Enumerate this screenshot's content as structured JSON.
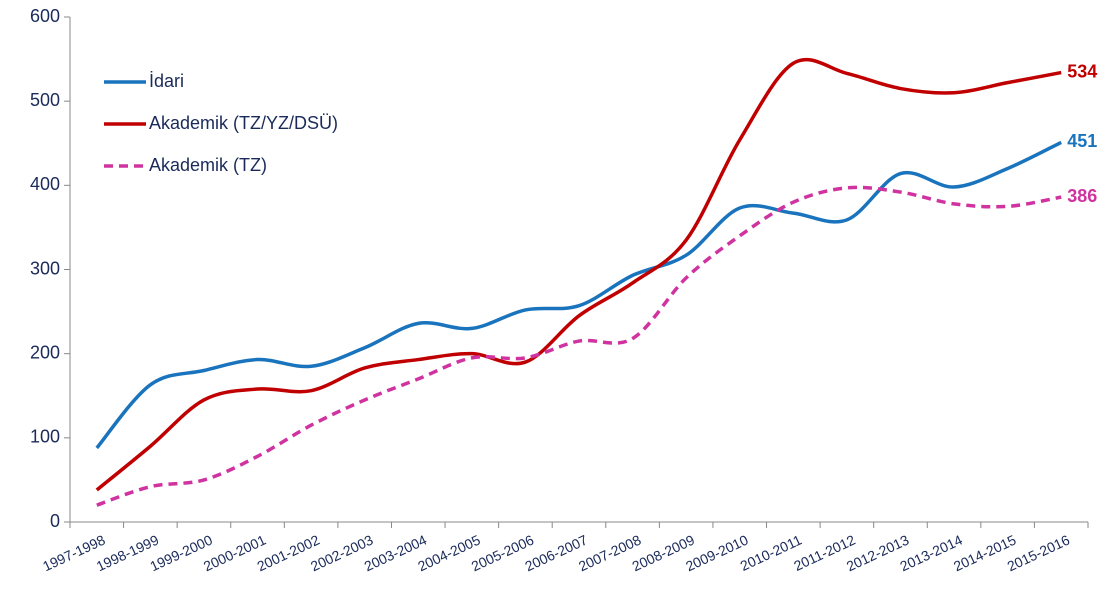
{
  "chart_data": {
    "type": "line",
    "categories": [
      "1997-1998",
      "1998-1999",
      "1999-2000",
      "2000-2001",
      "2001-2002",
      "2002-2003",
      "2003-2004",
      "2004-2005",
      "2005-2006",
      "2006-2007",
      "2007-2008",
      "2008-2009",
      "2009-2010",
      "2010-2011",
      "2011-2012",
      "2012-2013",
      "2013-2014",
      "2014-2015",
      "2015-2016"
    ],
    "series": [
      {
        "name": "İdari",
        "color": "#1a74bd",
        "dashed": false,
        "values": [
          88,
          163,
          180,
          193,
          185,
          207,
          236,
          230,
          252,
          257,
          293,
          317,
          373,
          367,
          359,
          414,
          398,
          420,
          451
        ]
      },
      {
        "name": "Akademik (TZ/YZ/DSÜ)",
        "color": "#c00000",
        "dashed": false,
        "values": [
          38,
          90,
          145,
          158,
          156,
          183,
          193,
          200,
          190,
          245,
          284,
          335,
          454,
          545,
          533,
          515,
          510,
          522,
          534
        ]
      },
      {
        "name": "Akademik (TZ)",
        "color": "#d033a0",
        "dashed": true,
        "values": [
          20,
          42,
          50,
          78,
          115,
          145,
          170,
          195,
          195,
          215,
          218,
          290,
          340,
          380,
          397,
          392,
          378,
          375,
          386
        ]
      }
    ],
    "ylim": [
      0,
      600
    ],
    "yticks": [
      0,
      100,
      200,
      300,
      400,
      500,
      600
    ],
    "grid": false,
    "smooth": true,
    "label_last": true,
    "legend": "upper left"
  }
}
